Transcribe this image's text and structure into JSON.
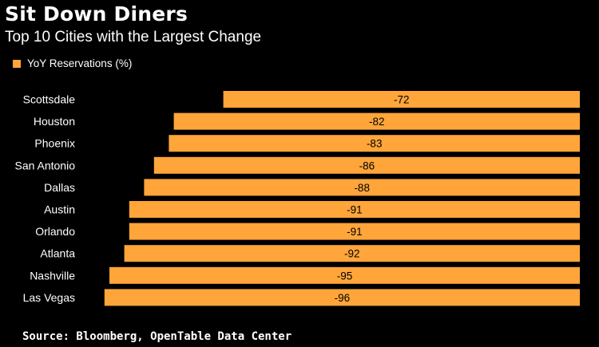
{
  "title": "Sit Down Diners",
  "subtitle": "Top 10 Cities with the Largest Change",
  "source": "Source: Bloomberg, OpenTable Data Center",
  "colors": {
    "background": "#000000",
    "bar": "#ffa53a",
    "text": "#ffffff"
  },
  "chart_data": {
    "type": "bar",
    "orientation": "horizontal",
    "categories": [
      "Scottsdale",
      "Houston",
      "Phoenix",
      "San Antonio",
      "Dallas",
      "Austin",
      "Orlando",
      "Atlanta",
      "Nashville",
      "Las Vegas"
    ],
    "series": [
      {
        "name": "YoY Reservations (%)",
        "values": [
          -72,
          -82,
          -83,
          -86,
          -88,
          -91,
          -91,
          -92,
          -95,
          -96
        ]
      }
    ],
    "xlim": [
      -100,
      0
    ],
    "legend_position": "top-left",
    "grid": false,
    "data_labels": true
  }
}
